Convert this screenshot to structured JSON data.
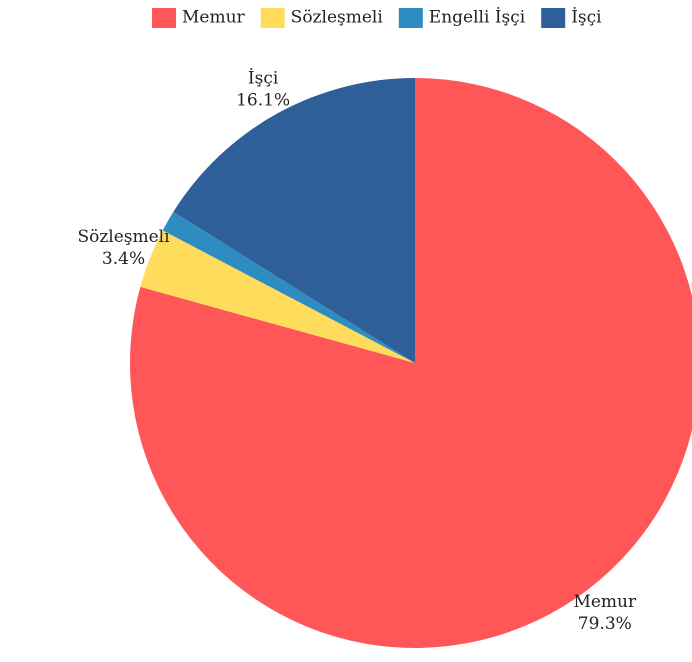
{
  "chart_data": {
    "type": "pie",
    "categories": [
      "Memur",
      "Sözleşmeli",
      "Engelli İşçi",
      "İşçi"
    ],
    "values": [
      79.3,
      3.4,
      1.2,
      16.1
    ],
    "value_labels": [
      "79.3%",
      "3.4%",
      null,
      "16.1%"
    ],
    "colors": [
      "#ff5757",
      "#ffdc5c",
      "#2e8cc0",
      "#2e5f99"
    ],
    "legend": "top-right"
  }
}
